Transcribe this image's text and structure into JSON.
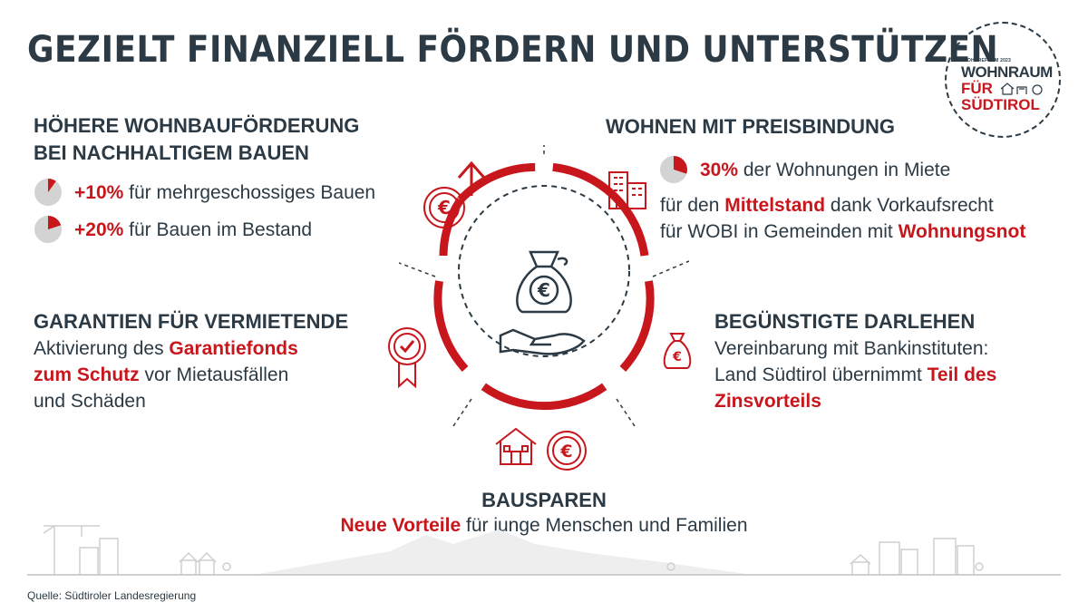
{
  "title": "GEZIELT FINANZIELL FÖRDERN UND UNTERSTÜTZEN",
  "logo": {
    "small": "WOHNREFORM 2023",
    "line1": "WOHNRAUM",
    "line2": "FÜR",
    "line3": "SÜDTIROL"
  },
  "left_top": {
    "heading_1": "HÖHERE WOHNBAUFÖRDERUNG",
    "heading_2": "BEI NACHHALTIGEM BAUEN",
    "items": [
      {
        "highlight": "+10%",
        "text": " für mehrgeschossiges Bauen",
        "percent": 10
      },
      {
        "highlight": "+20%",
        "text": " für Bauen im Bestand",
        "percent": 20
      }
    ]
  },
  "left_mid": {
    "heading": "GARANTIEN FÜR VERMIETENDE",
    "text_1": "Aktivierung des ",
    "highlight_1": "Garantiefonds",
    "highlight_2": "zum Schutz",
    "text_2": " vor Mietausfällen",
    "text_3": "und Schäden"
  },
  "right_top": {
    "heading": "WOHNEN MIT PREISBINDUNG",
    "highlight_pct": "30%",
    "pct_text": " der Wohnungen in Miete",
    "percent": 30,
    "text_1": "für den ",
    "highlight_1": "Mittelstand",
    "text_2": " dank Vorkaufsrecht",
    "text_3": "für WOBI in Gemeinden mit ",
    "highlight_2": "Wohnungsnot"
  },
  "right_mid": {
    "heading": "BEGÜNSTIGTE DARLEHEN",
    "text_1": "Vereinbarung mit Bankinstituten:",
    "text_2": "Land Südtirol übernimmt ",
    "highlight_1": "Teil des",
    "highlight_2": "Zinsvorteils"
  },
  "bottom": {
    "heading": "BAUSPAREN",
    "highlight": "Neue Vorteile",
    "text": " für junge Menschen und Familien"
  },
  "source": "Quelle: Südtiroler Landesregierung",
  "colors": {
    "red": "#c8161d",
    "dark": "#2b3a44",
    "grey": "#d3d3d3"
  }
}
